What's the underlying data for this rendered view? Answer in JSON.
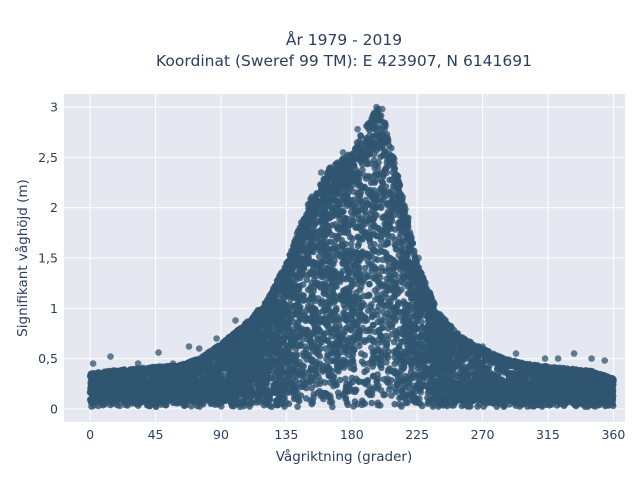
{
  "chart_data": {
    "type": "scatter",
    "title_line1": "År 1979 - 2019",
    "title_line2": "Koordinat (Sweref 99 TM): E 423907, N 6141691",
    "xlabel": "Vågriktning (grader)",
    "ylabel": "Signifikant våghöjd (m)",
    "xlim": [
      -18,
      368
    ],
    "ylim": [
      -0.13,
      3.13
    ],
    "x_ticks": [
      0,
      45,
      90,
      135,
      180,
      225,
      270,
      315,
      360
    ],
    "x_tick_labels": [
      "0",
      "45",
      "90",
      "135",
      "180",
      "225",
      "270",
      "315",
      "360"
    ],
    "y_ticks": [
      0,
      0.5,
      1,
      1.5,
      2,
      2.5,
      3
    ],
    "y_tick_labels": [
      "0",
      "0,5",
      "1",
      "1,5",
      "2",
      "2,5",
      "3"
    ],
    "grid": true,
    "marker_color": "#2f5570",
    "background_color": "#e5e8f1",
    "envelope": {
      "direction": [
        0,
        15,
        30,
        45,
        60,
        75,
        90,
        105,
        120,
        135,
        150,
        165,
        180,
        195,
        200,
        210,
        225,
        240,
        255,
        270,
        285,
        300,
        315,
        330,
        345,
        360
      ],
      "max_height": [
        0.35,
        0.38,
        0.4,
        0.42,
        0.43,
        0.5,
        0.65,
        0.82,
        1.05,
        1.45,
        2.05,
        2.4,
        2.55,
        2.95,
        3.0,
        2.45,
        1.45,
        0.95,
        0.72,
        0.6,
        0.5,
        0.45,
        0.42,
        0.4,
        0.38,
        0.3
      ]
    },
    "outliers": [
      {
        "x": 2,
        "y": 0.45
      },
      {
        "x": 14,
        "y": 0.52
      },
      {
        "x": 33,
        "y": 0.45
      },
      {
        "x": 47,
        "y": 0.56
      },
      {
        "x": 57,
        "y": 0.45
      },
      {
        "x": 68,
        "y": 0.62
      },
      {
        "x": 75,
        "y": 0.6
      },
      {
        "x": 87,
        "y": 0.7
      },
      {
        "x": 100,
        "y": 0.88
      },
      {
        "x": 107,
        "y": 0.85
      },
      {
        "x": 159,
        "y": 2.35
      },
      {
        "x": 163,
        "y": 2.3
      },
      {
        "x": 174,
        "y": 2.55
      },
      {
        "x": 184,
        "y": 2.78
      },
      {
        "x": 186,
        "y": 2.72
      },
      {
        "x": 197,
        "y": 3.0
      },
      {
        "x": 201,
        "y": 2.98
      },
      {
        "x": 219,
        "y": 1.9
      },
      {
        "x": 226,
        "y": 1.5
      },
      {
        "x": 236,
        "y": 1.05
      },
      {
        "x": 253,
        "y": 0.75
      },
      {
        "x": 270,
        "y": 0.62
      },
      {
        "x": 293,
        "y": 0.55
      },
      {
        "x": 313,
        "y": 0.5
      },
      {
        "x": 322,
        "y": 0.5
      },
      {
        "x": 333,
        "y": 0.55
      },
      {
        "x": 345,
        "y": 0.5
      },
      {
        "x": 354,
        "y": 0.48
      }
    ]
  }
}
